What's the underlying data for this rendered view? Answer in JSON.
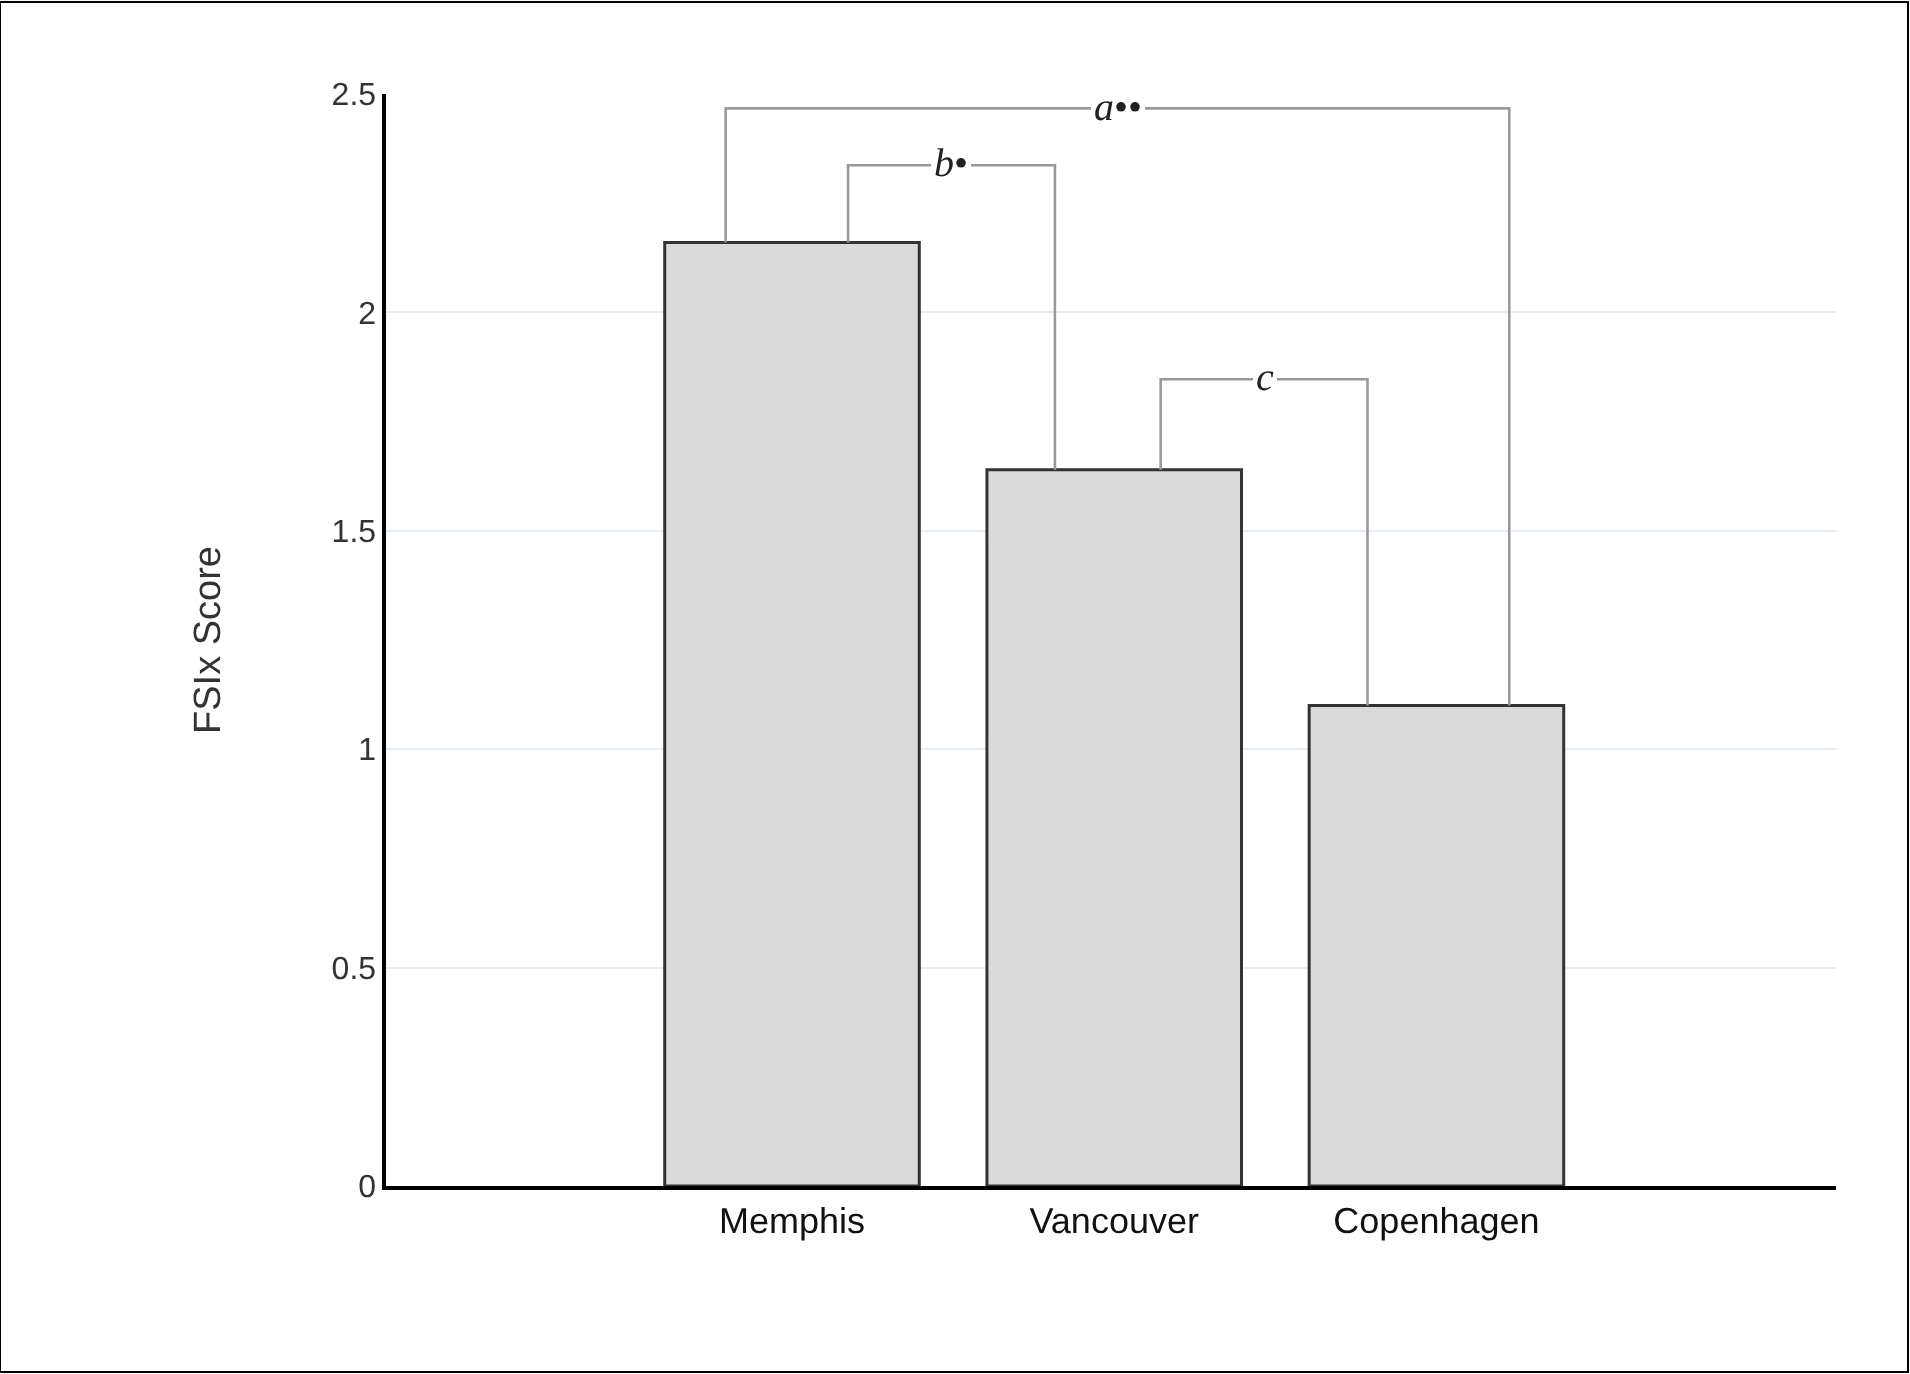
{
  "chart_data": {
    "type": "bar",
    "ylabel": "FSIx Score",
    "categories": [
      "Memphis",
      "Vancouver",
      "Copenhagen"
    ],
    "values": [
      2.16,
      1.64,
      1.1
    ],
    "color": "#d9d9d9",
    "ylim": [
      0,
      2.5
    ],
    "yticks": [
      0,
      0.5,
      1,
      1.5,
      2,
      2.5
    ],
    "grid": "y",
    "annotations": [
      "a••",
      "b•",
      "c"
    ]
  }
}
